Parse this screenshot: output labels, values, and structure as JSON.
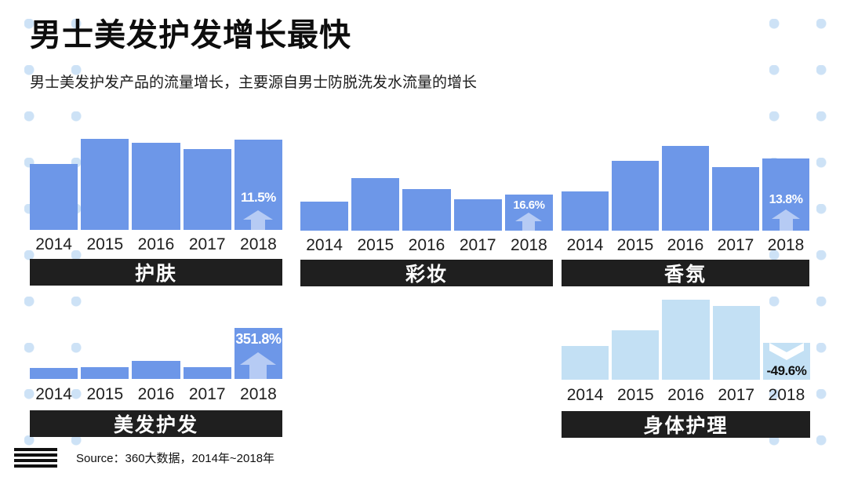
{
  "title": "男士美发护发增长最快",
  "subtitle": "男士美发护发产品的流量增长，主要源自男士防脱洗发水流量的增长",
  "source": {
    "label": "Source：360大数据，2014年~2018年"
  },
  "colors": {
    "bar_blue": "#6d97e8",
    "bar_light_blue": "#c3e0f4",
    "category_bar": "#1f1f1f",
    "dot": "#cde2f6",
    "growth_up_text": "#ffffff",
    "growth_down_text": "#101010"
  },
  "chart_data": [
    {
      "type": "bar",
      "title": "护肤",
      "categories": [
        "2014",
        "2015",
        "2016",
        "2017",
        "2018"
      ],
      "values": [
        72,
        100,
        96,
        89,
        99
      ],
      "values_note": "relative traffic index, % of tallest bar in panel (no y-axis shown)",
      "growth_label": "11.5%",
      "growth_direction": "up",
      "bar_color": "#6d97e8"
    },
    {
      "type": "bar",
      "title": "彩妆",
      "categories": [
        "2014",
        "2015",
        "2016",
        "2017",
        "2018"
      ],
      "values": [
        55,
        100,
        79,
        60,
        69
      ],
      "values_note": "relative traffic index, % of tallest bar in panel (no y-axis shown)",
      "growth_label": "16.6%",
      "growth_direction": "up",
      "bar_color": "#6d97e8"
    },
    {
      "type": "bar",
      "title": "香氛",
      "categories": [
        "2014",
        "2015",
        "2016",
        "2017",
        "2018"
      ],
      "values": [
        46,
        82,
        100,
        75,
        85
      ],
      "values_note": "relative traffic index, % of tallest bar in panel (no y-axis shown)",
      "growth_label": "13.8%",
      "growth_direction": "up",
      "bar_color": "#6d97e8"
    },
    {
      "type": "bar",
      "title": "美发护发",
      "categories": [
        "2014",
        "2015",
        "2016",
        "2017",
        "2018"
      ],
      "values": [
        22,
        23,
        35,
        23,
        100
      ],
      "values_note": "relative traffic index, % of tallest bar in panel (no y-axis shown)",
      "growth_label": "351.8%",
      "growth_direction": "up",
      "bar_color": "#6d97e8"
    },
    {
      "type": "bar",
      "title": "身体护理",
      "categories": [
        "2014",
        "2015",
        "2016",
        "2017",
        "2018"
      ],
      "values": [
        42,
        62,
        100,
        92,
        46
      ],
      "values_note": "relative traffic index, % of tallest bar in panel (no y-axis shown)",
      "growth_label": "-49.6%",
      "growth_direction": "down",
      "bar_color": "#c3e0f4"
    }
  ]
}
